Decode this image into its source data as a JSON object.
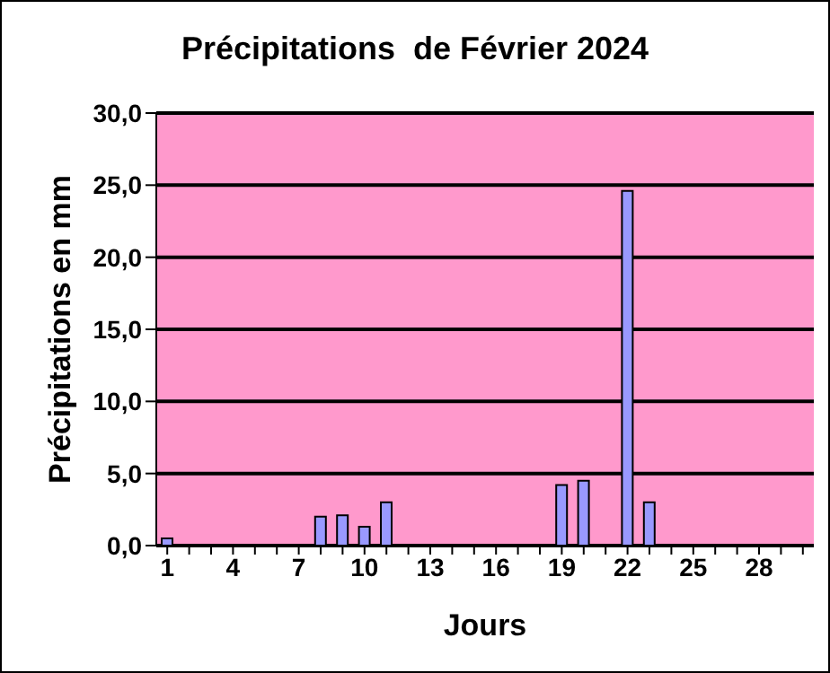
{
  "chart_data": {
    "type": "bar",
    "title": "Précipitations  de Février 2024",
    "xlabel": "Jours",
    "ylabel": "Précipitations en mm",
    "categories": [
      "1",
      null,
      null,
      "4",
      null,
      null,
      "7",
      null,
      null,
      "10",
      null,
      null,
      "13",
      null,
      null,
      "16",
      null,
      null,
      "19",
      null,
      null,
      "22",
      null,
      null,
      "25",
      null,
      null,
      "28",
      null,
      null
    ],
    "series": [
      {
        "color": "#9999ff",
        "values": [
          0.5,
          null,
          null,
          null,
          null,
          null,
          null,
          2.0,
          2.1,
          1.3,
          3.0,
          null,
          null,
          null,
          null,
          null,
          null,
          null,
          4.2,
          4.5,
          null,
          24.6,
          3.0,
          null,
          null,
          null,
          null,
          null,
          null,
          null
        ]
      }
    ],
    "ylim": [
      0,
      30
    ],
    "yticks": [
      {
        "value": 0,
        "label": "0,0"
      },
      {
        "value": 5,
        "label": "5,0"
      },
      {
        "value": 10,
        "label": "10,0"
      },
      {
        "value": 15,
        "label": "15,0"
      },
      {
        "value": 20,
        "label": "20,0"
      },
      {
        "value": 25,
        "label": "25,0"
      },
      {
        "value": 30,
        "label": "30,0"
      }
    ],
    "grid": "y",
    "legend": false
  }
}
